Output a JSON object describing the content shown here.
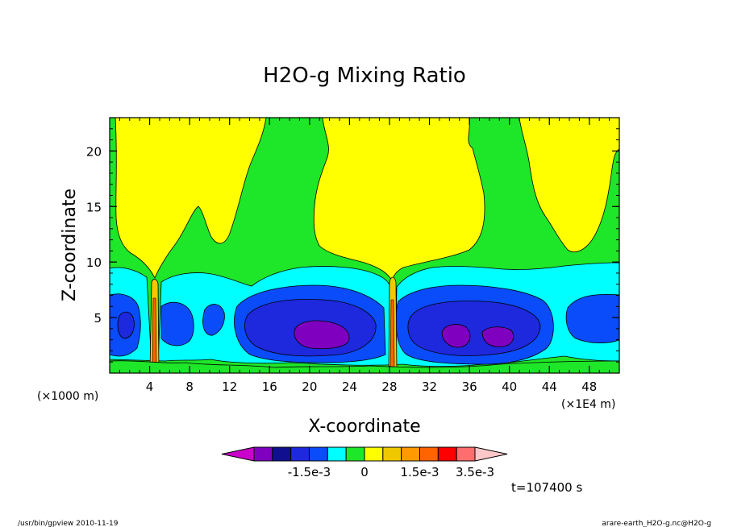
{
  "chart_data": {
    "type": "heatmap",
    "title": "H2O-g Mixing Ratio",
    "xlabel": "X-coordinate",
    "ylabel": "Z-coordinate",
    "x_unit": "(×1E4 m)",
    "y_unit": "(×1000 m)",
    "x_ticks": [
      "4",
      "8",
      "12",
      "16",
      "20",
      "24",
      "28",
      "32",
      "36",
      "40",
      "44",
      "48"
    ],
    "x_tick_values": [
      4,
      8,
      12,
      16,
      20,
      24,
      28,
      32,
      36,
      40,
      44,
      48
    ],
    "y_ticks": [
      "5",
      "10",
      "15",
      "20"
    ],
    "y_tick_values": [
      5,
      10,
      15,
      20
    ],
    "xlim": [
      0,
      51
    ],
    "ylim": [
      0,
      23
    ],
    "time_label": "t=107400 s",
    "colorbar": {
      "colors": [
        "#cc00cc",
        "#7f00bf",
        "#0f0f8f",
        "#1e28dc",
        "#0a4bfa",
        "#00ffff",
        "#1ee628",
        "#ffff00",
        "#f0c800",
        "#ff9b00",
        "#ff6400",
        "#ff0000",
        "#ff6e6e",
        "#ffc8c8"
      ],
      "labels": [
        "-1.5e-3",
        "0",
        "1.5e-3",
        "3.5e-3"
      ]
    },
    "footer_left": "/usr/bin/gpview   2010-11-19",
    "footer_right": "arare-earth_H2O-g.nc@H2O-g"
  }
}
